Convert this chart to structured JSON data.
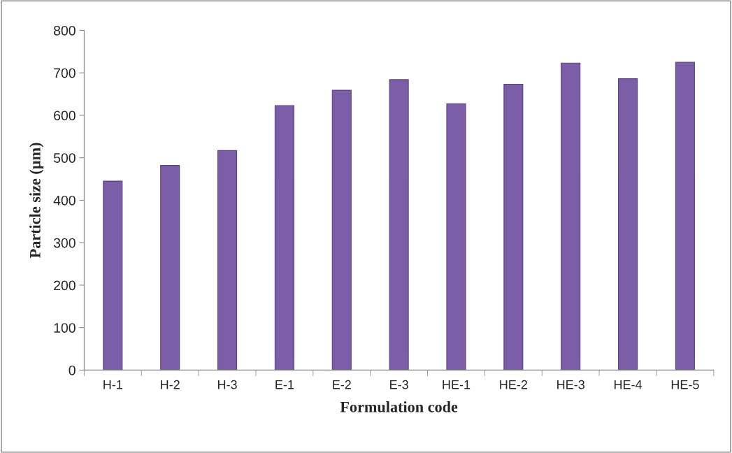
{
  "chart_data": {
    "type": "bar",
    "xlabel": "Formulation code",
    "ylabel": "Particle size (µm)",
    "categories": [
      "H-1",
      "H-2",
      "H-3",
      "E-1",
      "E-2",
      "E-3",
      "HE-1",
      "HE-2",
      "HE-3",
      "HE-4",
      "HE-5"
    ],
    "values": [
      445,
      482,
      517,
      623,
      659,
      684,
      627,
      673,
      723,
      686,
      725
    ],
    "color": "#7b5ea7",
    "ylim": [
      0,
      800
    ],
    "yticks": [
      0,
      100,
      200,
      300,
      400,
      500,
      600,
      700,
      800
    ],
    "grid": false,
    "legend": false
  }
}
